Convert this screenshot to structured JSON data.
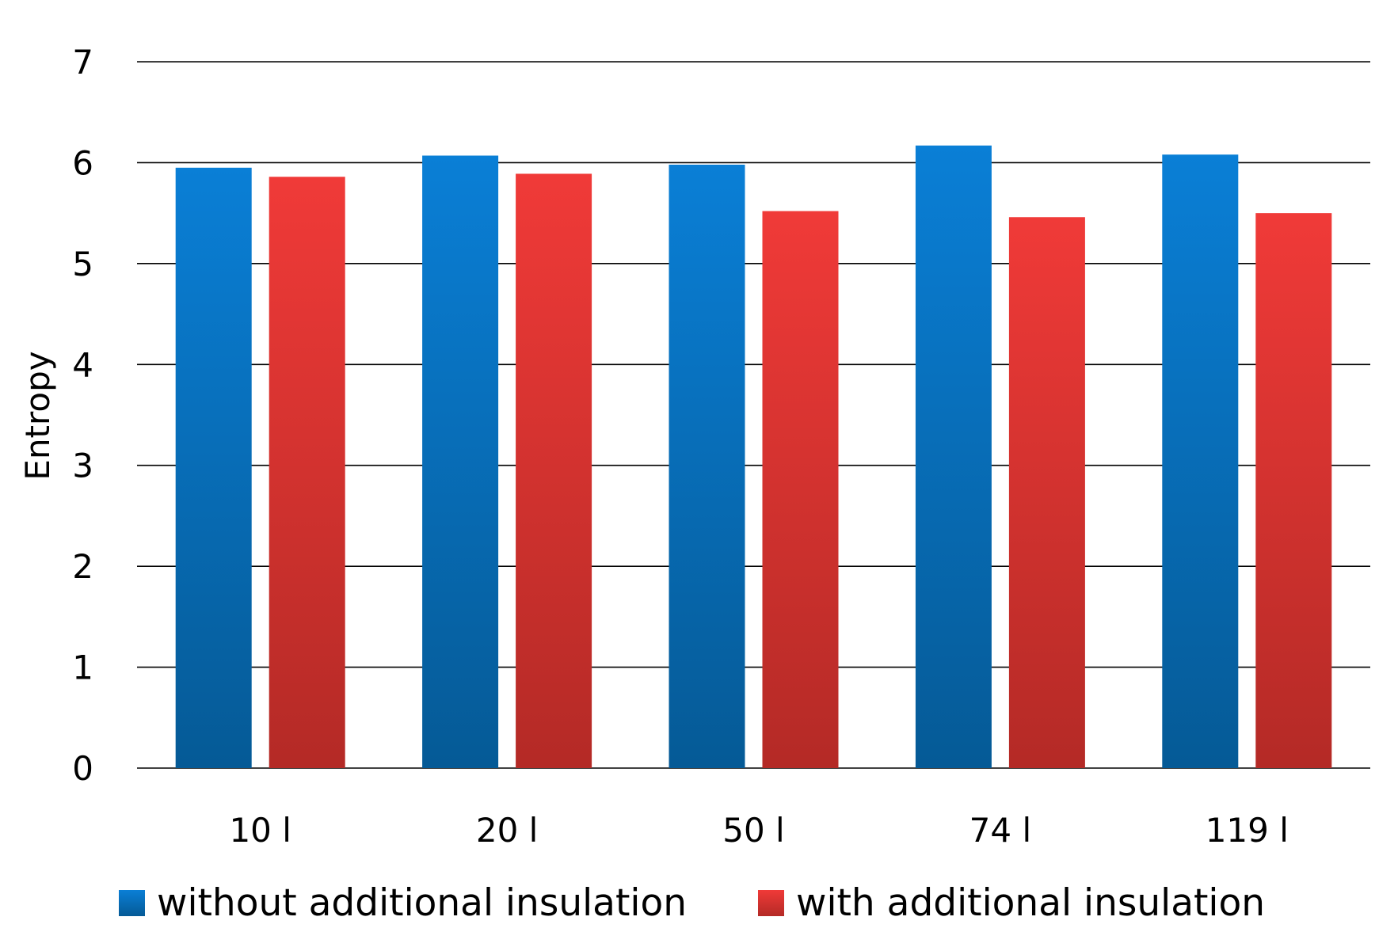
{
  "chart_data": {
    "type": "bar",
    "title": "",
    "xlabel": "",
    "ylabel": "Entropy",
    "ylim": [
      0,
      7
    ],
    "yticks": [
      0,
      1,
      2,
      3,
      4,
      5,
      6,
      7
    ],
    "grid": true,
    "legend_position": "bottom",
    "categories": [
      "10 l",
      "20 l",
      "50 l",
      "74 l",
      "119 l"
    ],
    "series": [
      {
        "name": "without additional insulation",
        "color_top": "#0a7fd6",
        "color_bottom": "#055a96",
        "values": [
          5.95,
          6.07,
          5.98,
          6.17,
          6.08
        ]
      },
      {
        "name": "with additional insulation",
        "color_top": "#f03a38",
        "color_bottom": "#b42a26",
        "values": [
          5.86,
          5.89,
          5.52,
          5.46,
          5.5
        ]
      }
    ]
  }
}
